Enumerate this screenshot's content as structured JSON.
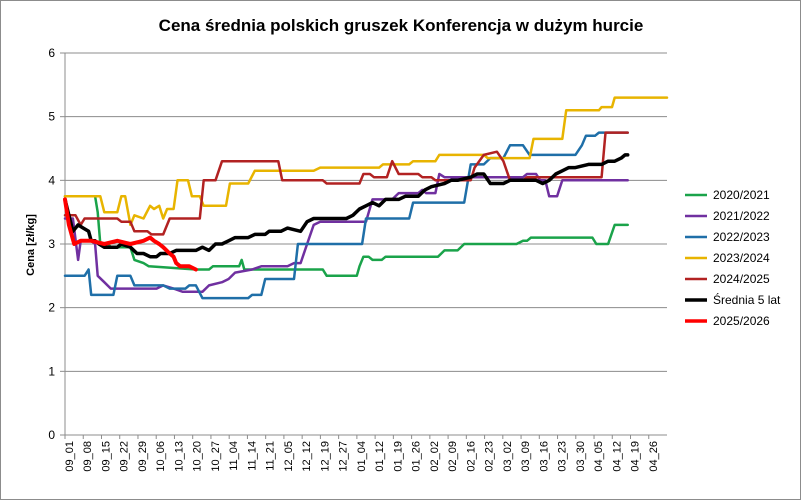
{
  "chart_data": {
    "type": "line",
    "title": "Cena średnia polskich gruszek Konferencja w dużym hurcie",
    "ylabel": "Cena [zł/kg]",
    "xlabel": "",
    "ylim": [
      0,
      6
    ],
    "yticks": [
      "0",
      "1",
      "2",
      "3",
      "4",
      "5",
      "6"
    ],
    "grid": "horizontal",
    "legend": "right",
    "x_ticks": [
      "09_01",
      "09_08",
      "09_15",
      "09_22",
      "09_29",
      "10_06",
      "10_13",
      "10_20",
      "10_27",
      "11_04",
      "11_14",
      "11_21",
      "12_05",
      "12_12",
      "12_19",
      "12_27",
      "01_04",
      "01_12",
      "01_19",
      "01_26",
      "02_02",
      "02_09",
      "02_16",
      "02_23",
      "03_02",
      "03_09",
      "03_16",
      "03_23",
      "03_30",
      "04_05",
      "04_12",
      "04_19",
      "04_26"
    ],
    "series": [
      {
        "name": "2020/2021",
        "color": "#1aa34a",
        "points": [
          [
            0,
            3.75
          ],
          [
            2.3,
            3.75
          ],
          [
            2.5,
            3.5
          ],
          [
            2.7,
            3.0
          ],
          [
            3.3,
            3.0
          ],
          [
            3.5,
            2.95
          ],
          [
            5,
            2.95
          ],
          [
            5.3,
            2.75
          ],
          [
            6,
            2.7
          ],
          [
            6.4,
            2.65
          ],
          [
            10,
            2.6
          ],
          [
            11,
            2.6
          ],
          [
            11.3,
            2.65
          ],
          [
            13.3,
            2.65
          ],
          [
            13.5,
            2.75
          ],
          [
            13.7,
            2.6
          ],
          [
            19.7,
            2.6
          ],
          [
            20,
            2.5
          ],
          [
            22.3,
            2.5
          ],
          [
            22.5,
            2.65
          ],
          [
            22.8,
            2.8
          ],
          [
            23.2,
            2.8
          ],
          [
            23.5,
            2.75
          ],
          [
            24.2,
            2.75
          ],
          [
            24.5,
            2.8
          ],
          [
            28.5,
            2.8
          ],
          [
            29,
            2.9
          ],
          [
            30,
            2.9
          ],
          [
            30.5,
            3.0
          ],
          [
            34.5,
            3.0
          ],
          [
            35,
            3.05
          ],
          [
            35.3,
            3.05
          ],
          [
            35.6,
            3.1
          ],
          [
            40.3,
            3.1
          ],
          [
            40.6,
            3.0
          ],
          [
            41.5,
            3.0
          ],
          [
            42,
            3.3
          ],
          [
            43,
            3.3
          ]
        ]
      },
      {
        "name": "2021/2022",
        "color": "#7030a0",
        "points": [
          [
            0,
            3.4
          ],
          [
            0.6,
            3.4
          ],
          [
            1,
            2.75
          ],
          [
            1.2,
            3.05
          ],
          [
            2,
            3.05
          ],
          [
            2.3,
            3.0
          ],
          [
            2.5,
            2.5
          ],
          [
            3,
            2.4
          ],
          [
            3.5,
            2.3
          ],
          [
            7,
            2.3
          ],
          [
            7.5,
            2.35
          ],
          [
            8.3,
            2.3
          ],
          [
            9,
            2.25
          ],
          [
            10.5,
            2.25
          ],
          [
            11,
            2.35
          ],
          [
            12,
            2.4
          ],
          [
            12.5,
            2.45
          ],
          [
            13,
            2.55
          ],
          [
            14.3,
            2.6
          ],
          [
            15,
            2.65
          ],
          [
            17,
            2.65
          ],
          [
            17.5,
            2.7
          ],
          [
            18,
            2.7
          ],
          [
            18.5,
            3.0
          ],
          [
            19,
            3.3
          ],
          [
            19.5,
            3.35
          ],
          [
            23,
            3.35
          ],
          [
            23.5,
            3.7
          ],
          [
            25,
            3.7
          ],
          [
            25.5,
            3.8
          ],
          [
            27,
            3.8
          ],
          [
            27.3,
            3.85
          ],
          [
            27.6,
            3.8
          ],
          [
            28.3,
            3.8
          ],
          [
            28.6,
            4.1
          ],
          [
            29,
            4.05
          ],
          [
            35,
            4.05
          ],
          [
            35.3,
            4.1
          ],
          [
            36,
            4.1
          ],
          [
            36.3,
            4.0
          ],
          [
            36.7,
            4.0
          ],
          [
            37,
            3.75
          ],
          [
            37.6,
            3.75
          ],
          [
            38,
            4.0
          ],
          [
            43,
            4.0
          ]
        ]
      },
      {
        "name": "2022/2023",
        "color": "#1f6fa8",
        "points": [
          [
            0,
            2.5
          ],
          [
            1.5,
            2.5
          ],
          [
            1.8,
            2.6
          ],
          [
            2,
            2.2
          ],
          [
            3.7,
            2.2
          ],
          [
            4,
            2.5
          ],
          [
            5,
            2.5
          ],
          [
            5.3,
            2.35
          ],
          [
            7.5,
            2.35
          ],
          [
            8,
            2.3
          ],
          [
            9.2,
            2.3
          ],
          [
            9.5,
            2.35
          ],
          [
            10,
            2.35
          ],
          [
            10.5,
            2.15
          ],
          [
            14,
            2.15
          ],
          [
            14.3,
            2.2
          ],
          [
            15,
            2.2
          ],
          [
            15.3,
            2.45
          ],
          [
            17.5,
            2.45
          ],
          [
            17.8,
            3.0
          ],
          [
            22.7,
            3.0
          ],
          [
            23,
            3.4
          ],
          [
            26.3,
            3.4
          ],
          [
            26.6,
            3.65
          ],
          [
            30.5,
            3.65
          ],
          [
            31,
            4.25
          ],
          [
            32,
            4.25
          ],
          [
            32.5,
            4.35
          ],
          [
            33.5,
            4.35
          ],
          [
            34,
            4.55
          ],
          [
            35,
            4.55
          ],
          [
            35.5,
            4.4
          ],
          [
            39,
            4.4
          ],
          [
            39.5,
            4.55
          ],
          [
            39.8,
            4.7
          ],
          [
            40.5,
            4.7
          ],
          [
            40.8,
            4.75
          ],
          [
            43,
            4.75
          ]
        ]
      },
      {
        "name": "2023/2024",
        "color": "#e8b400",
        "points": [
          [
            0,
            3.75
          ],
          [
            2.7,
            3.75
          ],
          [
            3,
            3.5
          ],
          [
            4,
            3.5
          ],
          [
            4.3,
            3.75
          ],
          [
            4.6,
            3.75
          ],
          [
            5,
            3.3
          ],
          [
            5.3,
            3.45
          ],
          [
            6,
            3.4
          ],
          [
            6.5,
            3.6
          ],
          [
            6.8,
            3.55
          ],
          [
            7.2,
            3.6
          ],
          [
            7.5,
            3.4
          ],
          [
            7.8,
            3.55
          ],
          [
            8.3,
            3.55
          ],
          [
            8.6,
            4.0
          ],
          [
            9.4,
            4.0
          ],
          [
            9.7,
            3.75
          ],
          [
            10.3,
            3.75
          ],
          [
            10.6,
            3.6
          ],
          [
            12.3,
            3.6
          ],
          [
            12.6,
            3.95
          ],
          [
            14,
            3.95
          ],
          [
            14.5,
            4.15
          ],
          [
            19,
            4.15
          ],
          [
            19.5,
            4.2
          ],
          [
            24,
            4.2
          ],
          [
            24.3,
            4.25
          ],
          [
            26.3,
            4.25
          ],
          [
            26.6,
            4.3
          ],
          [
            28.3,
            4.3
          ],
          [
            28.6,
            4.4
          ],
          [
            32,
            4.4
          ],
          [
            32.3,
            4.35
          ],
          [
            35.5,
            4.35
          ],
          [
            35.8,
            4.65
          ],
          [
            38,
            4.65
          ],
          [
            38.3,
            5.1
          ],
          [
            40.8,
            5.1
          ],
          [
            41,
            5.15
          ],
          [
            41.8,
            5.15
          ],
          [
            42,
            5.3
          ],
          [
            46,
            5.3
          ]
        ]
      },
      {
        "name": "2024/2025",
        "color": "#b22222",
        "points": [
          [
            0,
            3.45
          ],
          [
            0.8,
            3.45
          ],
          [
            1.2,
            3.3
          ],
          [
            1.5,
            3.4
          ],
          [
            4,
            3.4
          ],
          [
            4.3,
            3.35
          ],
          [
            5,
            3.35
          ],
          [
            5.3,
            3.2
          ],
          [
            6.3,
            3.2
          ],
          [
            6.6,
            3.15
          ],
          [
            7.5,
            3.15
          ],
          [
            8,
            3.4
          ],
          [
            10.3,
            3.4
          ],
          [
            10.6,
            4.0
          ],
          [
            11.5,
            4.0
          ],
          [
            12,
            4.3
          ],
          [
            16.3,
            4.3
          ],
          [
            16.6,
            4.0
          ],
          [
            19.7,
            4.0
          ],
          [
            20,
            3.95
          ],
          [
            22.5,
            3.95
          ],
          [
            22.8,
            4.1
          ],
          [
            23.3,
            4.1
          ],
          [
            23.6,
            4.05
          ],
          [
            24.6,
            4.05
          ],
          [
            25,
            4.3
          ],
          [
            25.5,
            4.1
          ],
          [
            27,
            4.1
          ],
          [
            27.3,
            4.05
          ],
          [
            28,
            4.05
          ],
          [
            28.3,
            4.0
          ],
          [
            31,
            4.0
          ],
          [
            31.3,
            4.2
          ],
          [
            32,
            4.4
          ],
          [
            33,
            4.45
          ],
          [
            33.5,
            4.3
          ],
          [
            34,
            4.0
          ],
          [
            35,
            4.0
          ],
          [
            35.3,
            4.05
          ],
          [
            41,
            4.05
          ],
          [
            41.3,
            4.75
          ],
          [
            43,
            4.75
          ]
        ]
      },
      {
        "name": "Średnia 5 lat",
        "color": "#000000",
        "points": [
          [
            0,
            3.7
          ],
          [
            0.3,
            3.45
          ],
          [
            0.6,
            3.2
          ],
          [
            1,
            3.3
          ],
          [
            1.4,
            3.25
          ],
          [
            1.8,
            3.2
          ],
          [
            2,
            3.05
          ],
          [
            2.3,
            3.05
          ],
          [
            2.6,
            3.0
          ],
          [
            3,
            2.95
          ],
          [
            4,
            2.95
          ],
          [
            4.3,
            3.0
          ],
          [
            5,
            2.95
          ],
          [
            5.5,
            2.85
          ],
          [
            6,
            2.85
          ],
          [
            6.5,
            2.8
          ],
          [
            7,
            2.8
          ],
          [
            7.3,
            2.85
          ],
          [
            8,
            2.85
          ],
          [
            8.5,
            2.9
          ],
          [
            9.5,
            2.9
          ],
          [
            10,
            2.9
          ],
          [
            10.5,
            2.95
          ],
          [
            11,
            2.9
          ],
          [
            11.5,
            3.0
          ],
          [
            12,
            3.0
          ],
          [
            12.5,
            3.05
          ],
          [
            13,
            3.1
          ],
          [
            14,
            3.1
          ],
          [
            14.5,
            3.15
          ],
          [
            15.3,
            3.15
          ],
          [
            15.6,
            3.2
          ],
          [
            16.5,
            3.2
          ],
          [
            17,
            3.25
          ],
          [
            18,
            3.2
          ],
          [
            18.5,
            3.35
          ],
          [
            19,
            3.4
          ],
          [
            19.5,
            3.4
          ],
          [
            20,
            3.4
          ],
          [
            21.5,
            3.4
          ],
          [
            22,
            3.45
          ],
          [
            22.5,
            3.55
          ],
          [
            23,
            3.6
          ],
          [
            23.5,
            3.65
          ],
          [
            24,
            3.6
          ],
          [
            24.5,
            3.7
          ],
          [
            25.5,
            3.7
          ],
          [
            26,
            3.75
          ],
          [
            27,
            3.75
          ],
          [
            27.5,
            3.85
          ],
          [
            28,
            3.9
          ],
          [
            29,
            3.95
          ],
          [
            29.5,
            4.0
          ],
          [
            30,
            4.0
          ],
          [
            31,
            4.05
          ],
          [
            31.5,
            4.1
          ],
          [
            32,
            4.1
          ],
          [
            32.5,
            3.95
          ],
          [
            33.5,
            3.95
          ],
          [
            34,
            4.0
          ],
          [
            36,
            4.0
          ],
          [
            36.5,
            3.95
          ],
          [
            37,
            4.0
          ],
          [
            37.5,
            4.1
          ],
          [
            38,
            4.15
          ],
          [
            38.5,
            4.2
          ],
          [
            39,
            4.2
          ],
          [
            40,
            4.25
          ],
          [
            41,
            4.25
          ],
          [
            41.5,
            4.3
          ],
          [
            42,
            4.3
          ],
          [
            42.5,
            4.35
          ],
          [
            42.8,
            4.4
          ],
          [
            43,
            4.4
          ]
        ]
      },
      {
        "name": "2025/2026",
        "color": "#ff0000",
        "points": [
          [
            0,
            3.7
          ],
          [
            0.3,
            3.3
          ],
          [
            0.7,
            3.0
          ],
          [
            1.2,
            3.05
          ],
          [
            2,
            3.05
          ],
          [
            3,
            3.0
          ],
          [
            4,
            3.05
          ],
          [
            5,
            3.0
          ],
          [
            6,
            3.05
          ],
          [
            6.5,
            3.1
          ],
          [
            6.8,
            3.05
          ],
          [
            7.2,
            3.0
          ],
          [
            7.5,
            2.95
          ],
          [
            8,
            2.85
          ],
          [
            8.3,
            2.8
          ],
          [
            8.5,
            2.7
          ],
          [
            8.8,
            2.65
          ],
          [
            9.5,
            2.65
          ],
          [
            10,
            2.6
          ]
        ]
      }
    ]
  }
}
